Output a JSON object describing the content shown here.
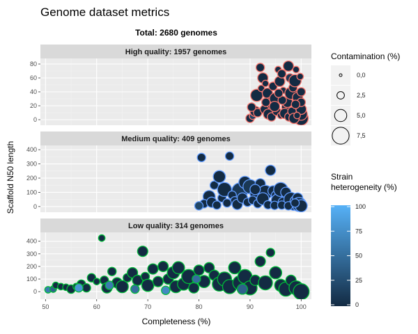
{
  "colors": {
    "panel_bg": "#ebebeb",
    "strip_bg": "#d9d9d9",
    "grid_major": "#ffffff",
    "high_border": "#f8766d",
    "medium_border": "#619cff",
    "low_border": "#00ba38",
    "fill_low": "#132b43",
    "fill_high": "#56b1f7"
  },
  "chart_data": {
    "type": "scatter",
    "title": "Genome dataset metrics",
    "subtitle": "Total: 2680 genomes",
    "xlabel": "Completeness (%)",
    "ylabel": "Scaffold N50 length",
    "xlim": [
      49,
      102
    ],
    "xticks": [
      50,
      60,
      70,
      80,
      90,
      100
    ],
    "grid": true,
    "legend_position": "right",
    "size_legend": {
      "title": "Contamination (%)",
      "breaks": [
        0.0,
        2.5,
        5.0,
        7.5
      ],
      "labels": [
        "0,0",
        "2,5",
        "5,0",
        "7,5"
      ]
    },
    "color_legend": {
      "title_lines": [
        "Strain",
        "heterogeneity (%)"
      ],
      "breaks": [
        0,
        25,
        50,
        75,
        100
      ],
      "labels": [
        "0",
        "25",
        "50",
        "75",
        "100"
      ]
    },
    "panels": [
      {
        "strip": "High quality: 1957 genomes",
        "ylim": [
          -8,
          88
        ],
        "yticks": [
          0,
          20,
          40,
          60,
          80
        ],
        "border": "#f8766d",
        "points": [
          [
            90,
            2,
            3,
            0
          ],
          [
            90.5,
            5,
            2,
            20
          ],
          [
            91,
            12,
            4,
            0
          ],
          [
            91.3,
            35,
            5,
            0
          ],
          [
            92,
            75,
            3,
            0
          ],
          [
            92.5,
            60,
            4,
            0
          ],
          [
            92.2,
            45,
            2,
            0
          ],
          [
            93,
            52,
            2,
            0
          ],
          [
            93.4,
            38,
            4,
            0
          ],
          [
            94,
            22,
            6,
            0
          ],
          [
            94.5,
            48,
            3,
            0
          ],
          [
            95,
            30,
            5,
            0
          ],
          [
            95.5,
            72,
            2,
            0
          ],
          [
            95.8,
            55,
            4,
            0
          ],
          [
            96.2,
            66,
            3,
            0
          ],
          [
            96.5,
            42,
            2,
            0
          ],
          [
            97,
            18,
            3,
            0
          ],
          [
            97.3,
            25,
            4,
            0
          ],
          [
            97.5,
            77,
            4,
            0
          ],
          [
            97.8,
            60,
            3,
            10
          ],
          [
            98,
            38,
            5,
            0
          ],
          [
            98.4,
            46,
            3,
            0
          ],
          [
            98.8,
            56,
            5,
            0
          ],
          [
            99,
            72,
            2,
            0
          ],
          [
            99.3,
            32,
            4,
            0
          ],
          [
            99.5,
            20,
            3,
            0
          ],
          [
            99.6,
            10,
            5,
            0
          ],
          [
            99.8,
            62,
            2,
            0
          ],
          [
            100,
            2,
            6,
            0
          ],
          [
            100,
            8,
            5,
            0
          ],
          [
            100,
            15,
            4,
            0
          ],
          [
            100,
            25,
            3,
            0
          ],
          [
            100,
            40,
            3,
            0
          ],
          [
            91.5,
            10,
            3,
            0
          ],
          [
            92.8,
            15,
            3,
            0
          ],
          [
            93.6,
            8,
            4,
            0
          ],
          [
            94.2,
            4,
            3,
            0
          ],
          [
            95.2,
            12,
            3,
            0
          ],
          [
            96,
            6,
            2,
            0
          ],
          [
            96.8,
            9,
            4,
            0
          ],
          [
            97.6,
            4,
            3,
            0
          ],
          [
            98.2,
            12,
            3,
            0
          ],
          [
            98.6,
            2,
            4,
            0
          ],
          [
            99.2,
            6,
            2,
            0
          ],
          [
            90.3,
            18,
            3,
            0
          ],
          [
            93.1,
            25,
            3,
            0
          ],
          [
            94.8,
            19,
            4,
            0
          ],
          [
            96.3,
            28,
            3,
            0
          ],
          [
            98.9,
            22,
            3,
            0
          ],
          [
            95.6,
            38,
            3,
            0
          ]
        ]
      },
      {
        "strip": "Medium quality: 409 genomes",
        "ylim": [
          -40,
          430
        ],
        "yticks": [
          0,
          100,
          200,
          300,
          400
        ],
        "border": "#619cff",
        "points": [
          [
            80.5,
            345,
            3,
            0
          ],
          [
            86,
            355,
            3,
            0
          ],
          [
            88,
            110,
            7,
            10
          ],
          [
            82,
            70,
            5,
            0
          ],
          [
            83,
            150,
            3,
            0
          ],
          [
            84.5,
            60,
            3,
            0
          ],
          [
            85,
            120,
            6,
            0
          ],
          [
            86.5,
            80,
            3,
            0
          ],
          [
            87,
            40,
            3,
            0
          ],
          [
            81,
            20,
            3,
            0
          ],
          [
            82.5,
            30,
            4,
            0
          ],
          [
            89,
            170,
            5,
            0
          ],
          [
            90,
            140,
            6,
            10
          ],
          [
            91,
            90,
            4,
            0
          ],
          [
            92,
            160,
            4,
            0
          ],
          [
            93,
            100,
            6,
            0
          ],
          [
            94,
            255,
            4,
            0
          ],
          [
            94.5,
            110,
            4,
            0
          ],
          [
            95,
            80,
            3,
            0
          ],
          [
            95.5,
            40,
            6,
            0
          ],
          [
            96,
            120,
            6,
            0
          ],
          [
            96.5,
            30,
            4,
            0
          ],
          [
            97,
            100,
            4,
            0
          ],
          [
            98,
            50,
            6,
            0
          ],
          [
            98.5,
            10,
            4,
            0
          ],
          [
            99,
            35,
            5,
            0
          ],
          [
            99.3,
            60,
            4,
            0
          ],
          [
            99.6,
            15,
            6,
            0
          ],
          [
            100,
            5,
            5,
            0
          ],
          [
            80,
            5,
            3,
            20
          ],
          [
            83.5,
            10,
            3,
            0
          ],
          [
            85.5,
            25,
            3,
            0
          ],
          [
            87.5,
            15,
            4,
            0
          ],
          [
            88.5,
            60,
            4,
            0
          ],
          [
            89.5,
            30,
            3,
            0
          ],
          [
            90.5,
            45,
            3,
            0
          ],
          [
            91.5,
            20,
            3,
            0
          ],
          [
            92.5,
            55,
            5,
            0
          ],
          [
            93.5,
            12,
            3,
            0
          ],
          [
            94.8,
            8,
            3,
            0
          ],
          [
            96.2,
            10,
            3,
            0
          ],
          [
            97.5,
            5,
            3,
            0
          ],
          [
            98.8,
            25,
            3,
            0
          ],
          [
            84,
            210,
            5,
            0
          ],
          [
            91,
            120,
            4,
            0
          ]
        ]
      },
      {
        "strip": "Low quality: 314 genomes",
        "ylim": [
          -60,
          470
        ],
        "yticks": [
          0,
          100,
          200,
          300,
          400
        ],
        "border": "#00ba38",
        "points": [
          [
            50.5,
            15,
            2,
            60
          ],
          [
            51.5,
            20,
            2,
            40
          ],
          [
            52,
            50,
            2,
            0
          ],
          [
            53,
            40,
            2,
            0
          ],
          [
            54,
            35,
            2,
            0
          ],
          [
            55,
            20,
            3,
            0
          ],
          [
            56,
            40,
            2,
            0
          ],
          [
            57,
            60,
            3,
            0
          ],
          [
            58,
            30,
            3,
            0
          ],
          [
            59,
            110,
            3,
            0
          ],
          [
            60,
            80,
            2,
            0
          ],
          [
            61,
            425,
            2,
            0
          ],
          [
            61.5,
            90,
            3,
            0
          ],
          [
            62,
            30,
            4,
            0
          ],
          [
            63,
            160,
            3,
            0
          ],
          [
            64,
            70,
            4,
            0
          ],
          [
            65,
            40,
            5,
            0
          ],
          [
            66,
            110,
            3,
            0
          ],
          [
            67,
            150,
            4,
            0
          ],
          [
            68,
            90,
            4,
            0
          ],
          [
            69,
            320,
            4,
            0
          ],
          [
            69.5,
            120,
            3,
            0
          ],
          [
            70,
            50,
            5,
            0
          ],
          [
            71,
            180,
            4,
            0
          ],
          [
            72,
            80,
            4,
            0
          ],
          [
            73,
            200,
            4,
            0
          ],
          [
            74,
            100,
            4,
            0
          ],
          [
            75,
            150,
            5,
            0
          ],
          [
            75.5,
            40,
            5,
            0
          ],
          [
            76,
            190,
            5,
            0
          ],
          [
            77,
            60,
            5,
            0
          ],
          [
            78,
            120,
            6,
            0
          ],
          [
            79,
            30,
            4,
            0
          ],
          [
            80,
            170,
            4,
            0
          ],
          [
            81,
            80,
            5,
            0
          ],
          [
            82,
            190,
            4,
            0
          ],
          [
            83,
            130,
            4,
            0
          ],
          [
            84,
            60,
            6,
            0
          ],
          [
            85,
            100,
            6,
            0
          ],
          [
            86,
            40,
            6,
            0
          ],
          [
            87,
            190,
            5,
            0
          ],
          [
            88,
            70,
            6,
            0
          ],
          [
            89,
            120,
            6,
            0
          ],
          [
            90,
            30,
            6,
            0
          ],
          [
            91,
            90,
            4,
            0
          ],
          [
            92,
            240,
            4,
            0
          ],
          [
            93,
            70,
            6,
            0
          ],
          [
            94,
            310,
            3,
            0
          ],
          [
            95,
            150,
            5,
            0
          ],
          [
            96,
            50,
            5,
            0
          ],
          [
            97,
            20,
            6,
            0
          ],
          [
            98,
            90,
            4,
            0
          ],
          [
            99,
            30,
            6,
            0
          ],
          [
            100,
            0,
            7,
            0
          ],
          [
            56.5,
            30,
            3,
            80
          ],
          [
            62.5,
            50,
            3,
            60
          ],
          [
            67.5,
            20,
            3,
            50
          ],
          [
            73.5,
            10,
            3,
            70
          ],
          [
            79.5,
            100,
            3,
            50
          ],
          [
            88.5,
            20,
            4,
            40
          ]
        ]
      }
    ]
  }
}
